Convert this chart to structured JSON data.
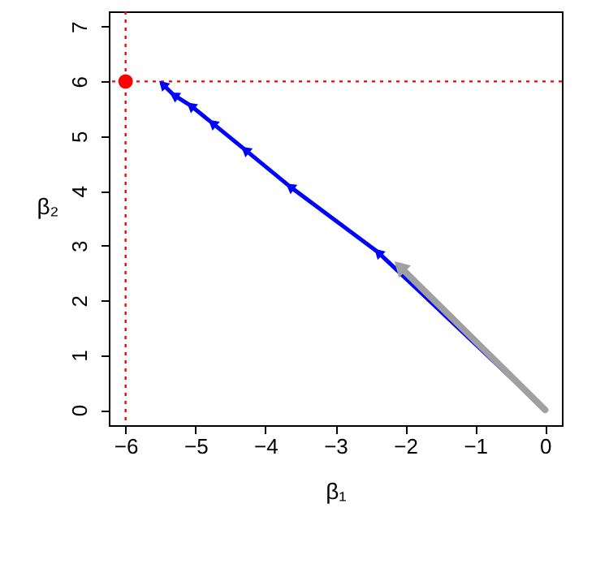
{
  "chart_data": {
    "type": "line",
    "xlabel": "β₁",
    "ylabel": "β₂",
    "xlim": [
      -6.24,
      0.24
    ],
    "ylim": [
      -0.28,
      7.28
    ],
    "xticks": [
      -6,
      -5,
      -4,
      -3,
      -2,
      -1,
      0
    ],
    "yticks": [
      0,
      1,
      2,
      3,
      4,
      5,
      6,
      7
    ],
    "grid": false,
    "legend": false,
    "series": [
      {
        "color": "#0000ff",
        "marker": "triangle",
        "x": [
          0,
          -2.39,
          -3.65,
          -4.29,
          -4.76,
          -5.07,
          -5.31,
          -5.47
        ],
        "values": [
          0,
          2.88,
          4.08,
          4.75,
          5.24,
          5.56,
          5.75,
          5.95
        ]
      },
      {
        "color": "#a0a0a0",
        "marker": "triangle",
        "x": [
          0,
          -2.08
        ],
        "values": [
          0,
          2.62
        ]
      },
      {
        "type": "scatter",
        "color": "#ff0000",
        "marker": "circle",
        "x": [
          -6
        ],
        "values": [
          6
        ]
      }
    ],
    "ref_lines": [
      {
        "axis": "x",
        "value": -6,
        "color": "#ff0000",
        "line_style": "dotted"
      },
      {
        "axis": "y",
        "value": 6,
        "color": "#ff0000",
        "line_style": "dotted"
      }
    ]
  }
}
